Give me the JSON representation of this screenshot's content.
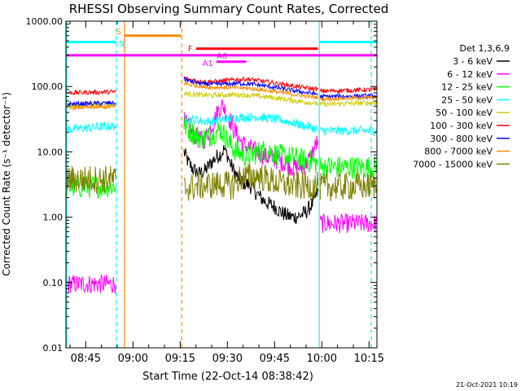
{
  "chart_data": {
    "type": "line",
    "title": "RHESSI Observing Summary Count Rates, Corrected",
    "xlabel": "Start Time (22-Oct-14 08:38:42)",
    "ylabel": "Corrected Count Rate (s⁻¹ detector⁻¹)",
    "yscale": "log",
    "ylim": [
      0.01,
      1000
    ],
    "xlim_minutes": [
      38.7,
      137.5
    ],
    "x_unit": "minutes after 08:00 UT",
    "x_ticks": [
      {
        "t": 45,
        "label": "08:45"
      },
      {
        "t": 60,
        "label": "09:00"
      },
      {
        "t": 75,
        "label": "09:15"
      },
      {
        "t": 90,
        "label": "09:30"
      },
      {
        "t": 105,
        "label": "09:45"
      },
      {
        "t": 120,
        "label": "10:00"
      },
      {
        "t": 135,
        "label": "10:15"
      }
    ],
    "y_ticks": [
      {
        "v": 1000,
        "label": "1000.00"
      },
      {
        "v": 100,
        "label": "100.00"
      },
      {
        "v": 10,
        "label": "10.00"
      },
      {
        "v": 1,
        "label": "1.00"
      },
      {
        "v": 0.1,
        "label": "0.10"
      },
      {
        "v": 0.01,
        "label": "0.01"
      }
    ],
    "legend_title": "Det 1,3,6,9",
    "legend_position": "right",
    "series": [
      {
        "name": "3 - 6 keV",
        "color": "#000000",
        "noise": 0.12,
        "segments": [
          [
            [
              76.2,
              10.0
            ],
            [
              77.5,
              7.0
            ],
            [
              79,
              5.5
            ],
            [
              81,
              4.6
            ],
            [
              83,
              5.2
            ],
            [
              85,
              7.0
            ],
            [
              86.5,
              8.3
            ],
            [
              88,
              9.5
            ],
            [
              89,
              11
            ],
            [
              90,
              9.0
            ],
            [
              91,
              6.5
            ],
            [
              93,
              4.2
            ],
            [
              95,
              3.4
            ],
            [
              97,
              3.1
            ],
            [
              99,
              2.4
            ],
            [
              101,
              1.9
            ],
            [
              103,
              1.6
            ],
            [
              105,
              1.45
            ],
            [
              107,
              1.2
            ],
            [
              109,
              1.05
            ],
            [
              111,
              1.0
            ],
            [
              113,
              1.05
            ],
            [
              115,
              1.2
            ],
            [
              117,
              1.6
            ],
            [
              118.8,
              2.5
            ]
          ]
        ]
      },
      {
        "name": "6 - 12 keV",
        "color": "#ff00ff",
        "noise": 0.15,
        "segments": [
          [
            [
              39,
              0.095
            ],
            [
              54.5,
              0.095
            ]
          ],
          [
            [
              76.2,
              30
            ],
            [
              78,
              22
            ],
            [
              80,
              17
            ],
            [
              82,
              14
            ],
            [
              83.5,
              18
            ],
            [
              85.5,
              28
            ],
            [
              87,
              42
            ],
            [
              88.5,
              52
            ],
            [
              90,
              38
            ],
            [
              92,
              22
            ],
            [
              94,
              15
            ],
            [
              96,
              12
            ],
            [
              98,
              11
            ],
            [
              100,
              9.5
            ],
            [
              102,
              8.5
            ],
            [
              104,
              8.0
            ],
            [
              106,
              7.5
            ],
            [
              108,
              6.8
            ],
            [
              110,
              6.0
            ],
            [
              112,
              5.8
            ],
            [
              114,
              6.0
            ],
            [
              116,
              7.5
            ],
            [
              117.5,
              11
            ],
            [
              118.8,
              15
            ]
          ],
          [
            [
              119.5,
              0.8
            ],
            [
              137.5,
              0.8
            ]
          ]
        ]
      },
      {
        "name": "12 - 25 keV",
        "color": "#00ff00",
        "noise": 0.18,
        "segments": [
          [
            [
              39,
              2.9
            ],
            [
              54.5,
              3.0
            ]
          ],
          [
            [
              76.2,
              26
            ],
            [
              78,
              21
            ],
            [
              80,
              18
            ],
            [
              82,
              16
            ],
            [
              84,
              17
            ],
            [
              86,
              20
            ],
            [
              88,
              22
            ],
            [
              90,
              15
            ],
            [
              92,
              11
            ],
            [
              94,
              9.5
            ],
            [
              96,
              8.5
            ],
            [
              98,
              9.0
            ],
            [
              100,
              10
            ],
            [
              102,
              10.5
            ],
            [
              104,
              10
            ],
            [
              106,
              9.0
            ],
            [
              108,
              8.5
            ],
            [
              110,
              8.2
            ],
            [
              112,
              8.0
            ],
            [
              114,
              7.5
            ],
            [
              116,
              7.2
            ],
            [
              118.8,
              6.6
            ]
          ],
          [
            [
              119.5,
              5.8
            ],
            [
              137.5,
              5.8
            ]
          ]
        ]
      },
      {
        "name": "25 - 50 keV",
        "color": "#00ffff",
        "noise": 0.07,
        "segments": [
          [
            [
              39,
              22
            ],
            [
              54.5,
              25
            ]
          ],
          [
            [
              76.2,
              32
            ],
            [
              80,
              31
            ],
            [
              84,
              29
            ],
            [
              88,
              31
            ],
            [
              92,
              33
            ],
            [
              96,
              34
            ],
            [
              100,
              34
            ],
            [
              104,
              32
            ],
            [
              108,
              30
            ],
            [
              112,
              27
            ],
            [
              116,
              24
            ],
            [
              118.8,
              22
            ]
          ],
          [
            [
              119.5,
              21
            ],
            [
              137.5,
              21
            ]
          ]
        ]
      },
      {
        "name": "50 - 100 keV",
        "color": "#cccc00",
        "noise": 0.04,
        "segments": [
          [
            [
              39,
              50
            ],
            [
              54.5,
              52
            ]
          ],
          [
            [
              76.2,
              78
            ],
            [
              80,
              75
            ],
            [
              84,
              73
            ],
            [
              88,
              74
            ],
            [
              92,
              75
            ],
            [
              96,
              74
            ],
            [
              100,
              71
            ],
            [
              104,
              68
            ],
            [
              108,
              64
            ],
            [
              112,
              60
            ],
            [
              116,
              57
            ],
            [
              118.8,
              55
            ]
          ],
          [
            [
              119.5,
              53
            ],
            [
              137.5,
              57
            ]
          ]
        ]
      },
      {
        "name": "100 - 300 keV",
        "color": "#ff0000",
        "noise": 0.035,
        "segments": [
          [
            [
              39,
              80
            ],
            [
              54.5,
              83
            ]
          ],
          [
            [
              76.2,
              135
            ],
            [
              78,
              128
            ],
            [
              82,
              118
            ],
            [
              86,
              119
            ],
            [
              90,
              124
            ],
            [
              94,
              128
            ],
            [
              96,
              130
            ],
            [
              100,
              123
            ],
            [
              104,
              115
            ],
            [
              108,
              107
            ],
            [
              112,
              100
            ],
            [
              116,
              94
            ],
            [
              118.8,
              91
            ]
          ],
          [
            [
              119.5,
              85
            ],
            [
              137.5,
              90
            ]
          ]
        ]
      },
      {
        "name": "300 - 800 keV",
        "color": "#0000ff",
        "noise": 0.035,
        "segments": [
          [
            [
              39,
              54
            ],
            [
              54.5,
              56
            ]
          ],
          [
            [
              76.2,
              130
            ],
            [
              78,
              120
            ],
            [
              82,
              110
            ],
            [
              86,
              108
            ],
            [
              90,
              110
            ],
            [
              94,
              112
            ],
            [
              98,
              108
            ],
            [
              102,
              102
            ],
            [
              106,
              95
            ],
            [
              110,
              88
            ],
            [
              114,
              82
            ],
            [
              118.8,
              76
            ]
          ],
          [
            [
              119.5,
              70
            ],
            [
              137.5,
              72
            ]
          ]
        ]
      },
      {
        "name": "800 - 7000 keV",
        "color": "#ff8c00",
        "noise": 0.03,
        "segments": [
          [
            [
              39,
              47
            ],
            [
              54.5,
              49
            ]
          ],
          [
            [
              76.2,
              112
            ],
            [
              80,
              103
            ],
            [
              84,
              97
            ],
            [
              88,
              97
            ],
            [
              92,
              96
            ],
            [
              96,
              94
            ],
            [
              100,
              90
            ],
            [
              104,
              85
            ],
            [
              108,
              80
            ],
            [
              112,
              74
            ],
            [
              116,
              70
            ],
            [
              118.8,
              68
            ]
          ],
          [
            [
              119.5,
              64
            ],
            [
              137.5,
              68
            ]
          ]
        ]
      },
      {
        "name": "7000 - 15000 keV",
        "color": "#808000",
        "noise": 0.22,
        "segments": [
          [
            [
              39,
              3.8
            ],
            [
              54.5,
              3.8
            ]
          ],
          [
            [
              76.2,
              2.8
            ],
            [
              82,
              3.0
            ],
            [
              88,
              3.2
            ],
            [
              92,
              3.0
            ],
            [
              94,
              4.0
            ],
            [
              100,
              4.3
            ],
            [
              106,
              3.3
            ],
            [
              112,
              3.0
            ],
            [
              118.8,
              3.0
            ]
          ],
          [
            [
              119.5,
              2.9
            ],
            [
              137.5,
              3.0
            ]
          ]
        ]
      }
    ],
    "vertical_markers": [
      {
        "t": 38.9,
        "color": "#00ffff",
        "style": "solid"
      },
      {
        "t": 54.7,
        "color": "#00ffff",
        "style": "dashed"
      },
      {
        "t": 57.3,
        "color": "#ff8c00",
        "style": "solid"
      },
      {
        "t": 75.5,
        "color": "#ff8c00",
        "style": "dashed"
      },
      {
        "t": 119.2,
        "color": "#00ffff",
        "style": "solid"
      },
      {
        "t": 135.7,
        "color": "#00ffff",
        "style": "dashed"
      }
    ],
    "flag_bars": [
      {
        "label": "S",
        "color": "#ff8c00",
        "t0": 57.3,
        "t1": 75.3,
        "y": 600,
        "label_side": "left",
        "label_y": 710
      },
      {
        "label": "N",
        "color": "#00ffff",
        "t0": 54.7,
        "t1": 54.7,
        "y": 600,
        "label_side": "right",
        "label_y": 460
      },
      {
        "label": "",
        "color": "#00ffff",
        "t0": 38.9,
        "t1": 54.7,
        "y": 480,
        "label_side": "none",
        "label_y": 0
      },
      {
        "label": "",
        "color": "#00ffff",
        "t0": 119.2,
        "t1": 137.5,
        "y": 480,
        "label_side": "none",
        "label_y": 0
      },
      {
        "label": "F",
        "color": "#ff0000",
        "t0": 80.0,
        "t1": 118.8,
        "y": 380,
        "label_side": "left",
        "label_y": 390
      },
      {
        "label": "",
        "color": "#ff00ff",
        "t0": 38.9,
        "t1": 137.5,
        "y": 300,
        "label_side": "none",
        "label_y": 0
      },
      {
        "label": "A0",
        "color": "#ff00ff",
        "t0": 88.3,
        "t1": 88.3,
        "y": 300,
        "label_side": "none",
        "label_y": 300
      },
      {
        "label": "A1",
        "color": "#ff00ff",
        "t0": 86.5,
        "t1": 96.0,
        "y": 240,
        "label_side": "left",
        "label_y": 230
      }
    ],
    "timestamp": "21-Oct-2021 10:19"
  }
}
